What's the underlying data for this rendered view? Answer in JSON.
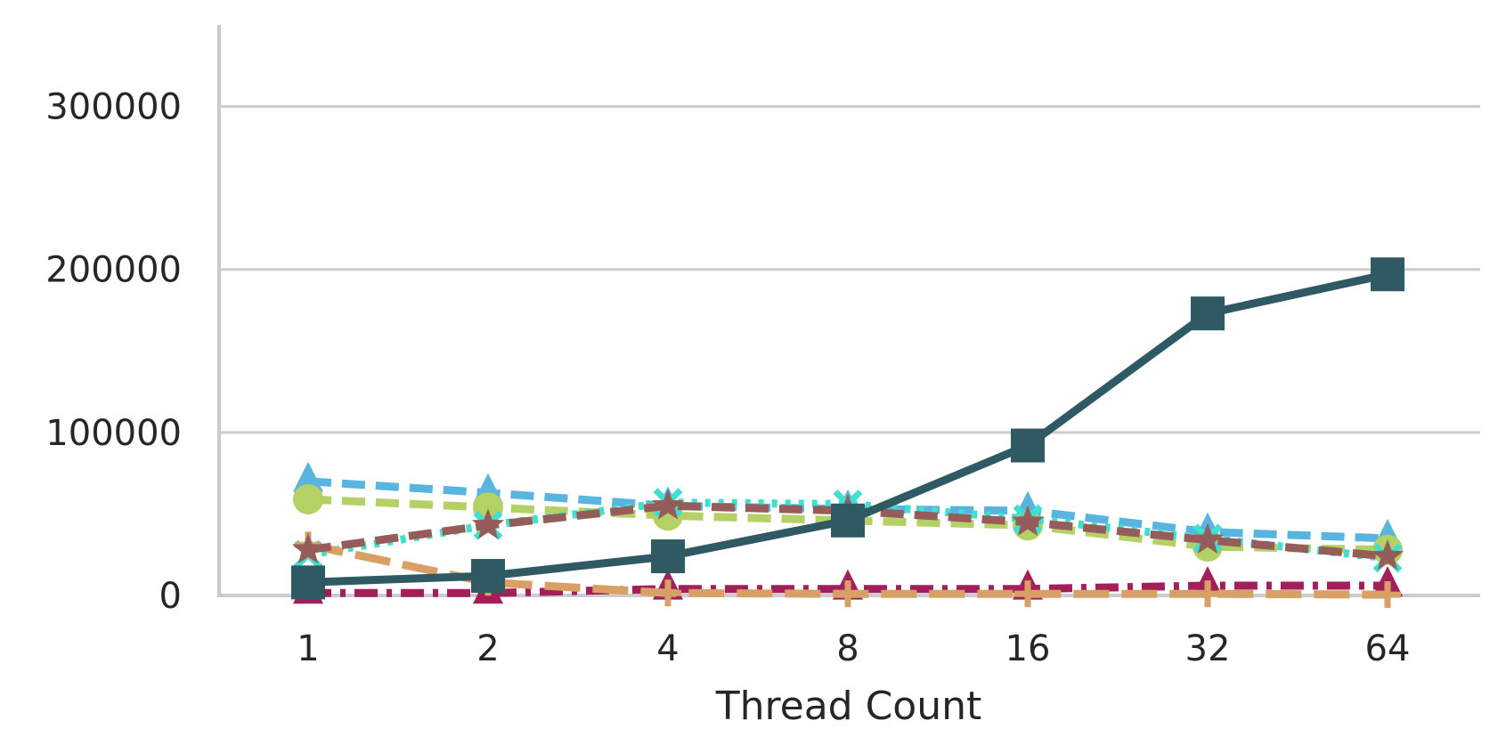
{
  "chart_data": {
    "type": "line",
    "title": "",
    "xlabel": "Thread Count",
    "ylabel": "",
    "categories": [
      "1",
      "2",
      "4",
      "8",
      "16",
      "32",
      "64"
    ],
    "ylim": [
      0,
      350000
    ],
    "yticks": [
      0,
      100000,
      200000,
      300000
    ],
    "yticklabels": [
      "0",
      "100000",
      "200000",
      "300000"
    ],
    "grid": "horizontal",
    "legend": "none",
    "series": [
      {
        "color": "#5ab4e0",
        "dash": "dashed",
        "marker": "triangle",
        "values": [
          70000,
          63000,
          55000,
          53000,
          52000,
          39000,
          35000
        ]
      },
      {
        "color": "#b3d165",
        "dash": "dashed",
        "marker": "circle",
        "values": [
          59000,
          54000,
          49000,
          46000,
          43000,
          30000,
          28000
        ]
      },
      {
        "color": "#40e0d0",
        "dash": "dotted",
        "marker": "x",
        "values": [
          25000,
          43000,
          57000,
          56000,
          47000,
          35000,
          23000
        ]
      },
      {
        "color": "#a31f5a",
        "dash": "dashdot",
        "marker": "triangle",
        "values": [
          1500,
          1500,
          4000,
          4000,
          4000,
          6000,
          6000
        ]
      },
      {
        "color": "#d9a066",
        "dash": "longdash",
        "marker": "plus",
        "values": [
          31000,
          8000,
          1500,
          1000,
          1000,
          1000,
          500
        ]
      },
      {
        "color": "#955c59",
        "dash": "dashed",
        "marker": "star",
        "values": [
          28000,
          43000,
          55000,
          52000,
          45000,
          34000,
          24000
        ]
      },
      {
        "color": "#2f5a64",
        "dash": "solid",
        "marker": "square",
        "values": [
          8000,
          12000,
          24000,
          46000,
          92000,
          173000,
          197000
        ]
      }
    ]
  }
}
